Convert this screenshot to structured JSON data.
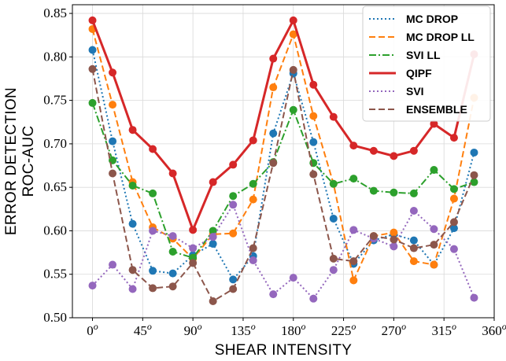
{
  "chart_data": {
    "type": "line",
    "title": "",
    "xlabel": "SHEAR INTENSITY",
    "ylabel": [
      "ERROR DETECTION",
      "ROC-AUC"
    ],
    "xlim": [
      -18,
      360
    ],
    "ylim": [
      0.5,
      0.86
    ],
    "x_ticks": [
      0,
      45,
      90,
      135,
      180,
      225,
      270,
      315,
      360
    ],
    "x_tick_labels": [
      "0",
      "45",
      "90",
      "135",
      "180",
      "225",
      "270",
      "315",
      "360"
    ],
    "x_tick_suffix": "o",
    "y_ticks": [
      0.5,
      0.55,
      0.6,
      0.65,
      0.7,
      0.75,
      0.8,
      0.85
    ],
    "y_tick_labels": [
      "0.50",
      "0.55",
      "0.60",
      "0.65",
      "0.70",
      "0.75",
      "0.80",
      "0.85"
    ],
    "x": [
      0,
      18,
      36,
      54,
      72,
      90,
      108,
      126,
      144,
      162,
      180,
      198,
      216,
      234,
      252,
      270,
      288,
      306,
      324,
      342
    ],
    "legend_position": "top-right",
    "series": [
      {
        "name": "MC DROP",
        "color": "#1f77b4",
        "style": "dotted",
        "values": [
          0.808,
          0.703,
          0.608,
          0.554,
          0.551,
          0.572,
          0.585,
          0.544,
          0.571,
          0.712,
          0.781,
          0.702,
          0.614,
          0.562,
          0.589,
          0.596,
          0.589,
          0.561,
          0.603,
          0.69
        ]
      },
      {
        "name": "MC DROP LL",
        "color": "#ff7f0e",
        "style": "dashed",
        "values": [
          0.832,
          0.745,
          0.656,
          0.604,
          0.591,
          0.568,
          0.596,
          0.597,
          0.636,
          0.765,
          0.826,
          0.732,
          0.654,
          0.543,
          0.594,
          0.598,
          0.565,
          0.561,
          0.637,
          0.753
        ]
      },
      {
        "name": "SVI LL",
        "color": "#2ca02c",
        "style": "dashdot",
        "values": [
          0.747,
          0.681,
          0.652,
          0.643,
          0.576,
          0.569,
          0.6,
          0.64,
          0.654,
          0.679,
          0.739,
          0.678,
          0.654,
          0.66,
          0.646,
          0.644,
          0.643,
          0.67,
          0.648,
          0.656
        ]
      },
      {
        "name": "QIPF",
        "color": "#d62728",
        "style": "solid",
        "values": [
          0.842,
          0.782,
          0.716,
          0.694,
          0.666,
          0.601,
          0.656,
          0.676,
          0.704,
          0.798,
          0.842,
          0.768,
          0.731,
          0.698,
          0.692,
          0.686,
          0.692,
          0.723,
          0.707,
          0.803
        ]
      },
      {
        "name": "SVI",
        "color": "#9467bd",
        "style": "dotted",
        "values": [
          0.537,
          0.561,
          0.533,
          0.6,
          0.594,
          0.58,
          0.593,
          0.63,
          0.566,
          0.527,
          0.546,
          0.522,
          0.555,
          0.601,
          0.591,
          0.582,
          0.623,
          0.602,
          0.579,
          0.523
        ]
      },
      {
        "name": "ENSEMBLE",
        "color": "#8c564b",
        "style": "dashed",
        "values": [
          0.786,
          0.666,
          0.555,
          0.534,
          0.536,
          0.563,
          0.519,
          0.533,
          0.58,
          0.678,
          0.785,
          0.665,
          0.568,
          0.565,
          0.594,
          0.59,
          0.58,
          0.584,
          0.61,
          0.664
        ]
      }
    ]
  }
}
